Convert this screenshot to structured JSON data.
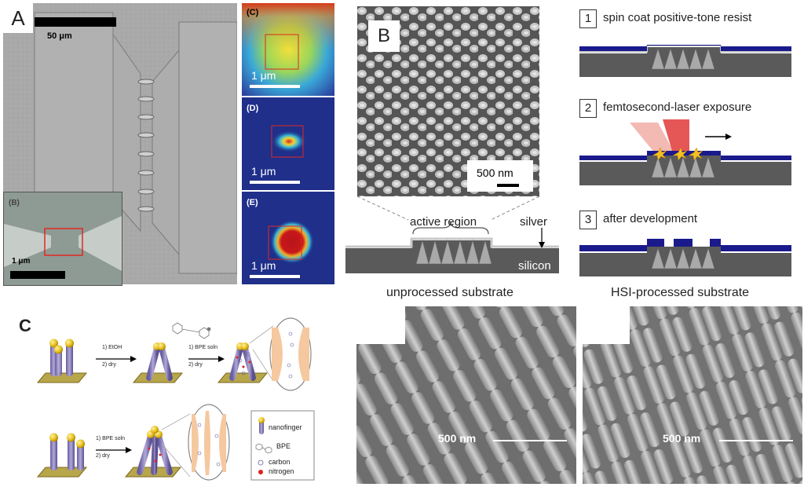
{
  "panels": {
    "A": {
      "label": "A",
      "main_scale": "50 μm",
      "inset_b": {
        "label": "(B)",
        "scale": "1 μm"
      },
      "map_c": {
        "label": "(C)",
        "scale": "1 μm"
      },
      "map_d": {
        "label": "(D)",
        "scale": "1 μm"
      },
      "map_e": {
        "label": "(E)",
        "scale": "1 μm"
      }
    },
    "B": {
      "label": "B",
      "sem_scale": "500 nm",
      "schematic": {
        "active_region": "active region",
        "silver": "silver",
        "silicon": "silicon"
      },
      "steps": [
        {
          "num": "1",
          "text": "spin coat positive-tone resist"
        },
        {
          "num": "2",
          "text": "femtosecond-laser exposure"
        },
        {
          "num": "3",
          "text": "after development"
        }
      ],
      "unprocessed": {
        "title": "unprocessed substrate",
        "scale": "500 nm"
      },
      "processed": {
        "title": "HSI-processed substrate",
        "scale": "500 nm"
      }
    },
    "C": {
      "label": "C",
      "top_step1": "1) EtOH",
      "top_step1b": "2) dry",
      "top_step2": "1) BPE soln",
      "top_step2b": "2) dry",
      "bottom_step1": "1) BPE soln",
      "bottom_step1b": "2) dry",
      "legend": {
        "nanofinger": "nanofinger",
        "bpe": "BPE",
        "carbon": "carbon",
        "nitrogen": "nitrogen"
      }
    }
  },
  "colors": {
    "resist_blue": "#1a1a8c",
    "substrate_gray": "#5a5a5a",
    "nanofinger": "#8a7fb8",
    "gold": "#e8c020",
    "base": "#b8a64a"
  }
}
